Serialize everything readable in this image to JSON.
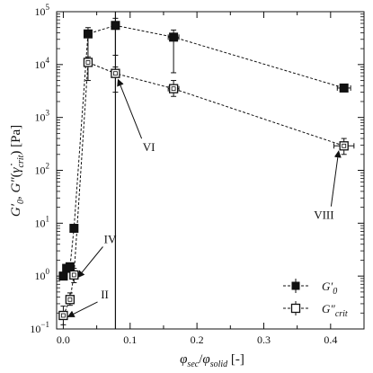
{
  "chart_data": {
    "type": "scatter",
    "x_scale": "linear",
    "y_scale": "log",
    "xlim": [
      -0.01,
      0.45
    ],
    "ylim": [
      0.1,
      100000
    ],
    "x_ticks": [
      0.0,
      0.1,
      0.2,
      0.3,
      0.4
    ],
    "x_tick_labels": [
      "0.0",
      "0.1",
      "0.2",
      "0.3",
      "0.4"
    ],
    "y_ticks": [
      0.1,
      1,
      10,
      100,
      1000,
      10000,
      100000
    ],
    "y_tick_labels": [
      {
        "base": "10",
        "exp": "−1"
      },
      {
        "base": "10",
        "exp": "0"
      },
      {
        "base": "10",
        "exp": "1"
      },
      {
        "base": "10",
        "exp": "2"
      },
      {
        "base": "10",
        "exp": "3"
      },
      {
        "base": "10",
        "exp": "4"
      },
      {
        "base": "10",
        "exp": "5"
      }
    ],
    "xlabel": {
      "main1": "φ",
      "sub1": "sec",
      "slash": "/",
      "main2": "φ",
      "sub2": "solid",
      "unit": " [-]"
    },
    "ylabel": {
      "g0": "G′",
      "sub0": "0",
      "comma": ", ",
      "g2": "G″",
      "paren_open": "(",
      "gamma": "γ̇",
      "subc": "crit",
      "paren_close": ")",
      "unit": " [Pa]"
    },
    "vertical_line_x": 0.078,
    "series": [
      {
        "name": "G′0",
        "marker": "filled-square",
        "color": "#111111",
        "points": [
          {
            "x": 0.0,
            "y": 1.0
          },
          {
            "x": 0.005,
            "y": 1.4
          },
          {
            "x": 0.01,
            "y": 1.5
          },
          {
            "x": 0.016,
            "y": 8.0
          },
          {
            "x": 0.037,
            "y": 38000,
            "xerr": 0.004,
            "ylo": 12000,
            "yhi": 50000
          },
          {
            "x": 0.078,
            "y": 55000,
            "ylo": 15000,
            "yhi": 75000
          },
          {
            "x": 0.165,
            "y": 33000,
            "xerr": 0.008,
            "ylo": 7000,
            "yhi": 45000
          },
          {
            "x": 0.42,
            "y": 3600,
            "xerr": 0.01
          }
        ]
      },
      {
        "name": "G″crit",
        "marker": "open-square",
        "color": "#111111",
        "points": [
          {
            "x": 0.0,
            "y": 0.18,
            "ylo": 0.12,
            "yhi": 0.27
          },
          {
            "x": 0.01,
            "y": 0.36,
            "ylo": 0.28,
            "yhi": 0.48
          },
          {
            "x": 0.016,
            "y": 1.05,
            "ylo": 0.75,
            "yhi": 1.4
          },
          {
            "x": 0.037,
            "y": 11000,
            "xerr": 0.004,
            "ylo": 5000,
            "yhi": 14000
          },
          {
            "x": 0.078,
            "y": 6800,
            "ylo": 3000,
            "yhi": 9000
          },
          {
            "x": 0.165,
            "y": 3500,
            "xerr": 0.008,
            "ylo": 2500,
            "yhi": 5000
          },
          {
            "x": 0.42,
            "y": 290,
            "xerr": 0.015,
            "ylo": 200,
            "yhi": 400
          }
        ]
      }
    ],
    "annotations": [
      {
        "label": "II",
        "x_text": 0.062,
        "y_text": 0.38,
        "x_tip": 0.007,
        "y_tip": 0.17
      },
      {
        "label": "IV",
        "x_text": 0.07,
        "y_text": 4.2,
        "x_tip": 0.022,
        "y_tip": 0.95
      },
      {
        "label": "VI",
        "x_text": 0.128,
        "y_text": 230,
        "x_tip": 0.082,
        "y_tip": 5200
      },
      {
        "label": "VIII",
        "x_text": 0.39,
        "y_text": 12,
        "x_tip": 0.412,
        "y_tip": 230
      }
    ],
    "legend": {
      "position": "bottom-right",
      "entries": [
        {
          "main": "G′",
          "sub": "0",
          "marker": "filled-square"
        },
        {
          "main": "G″",
          "sub": "crit",
          "marker": "open-square"
        }
      ]
    }
  }
}
